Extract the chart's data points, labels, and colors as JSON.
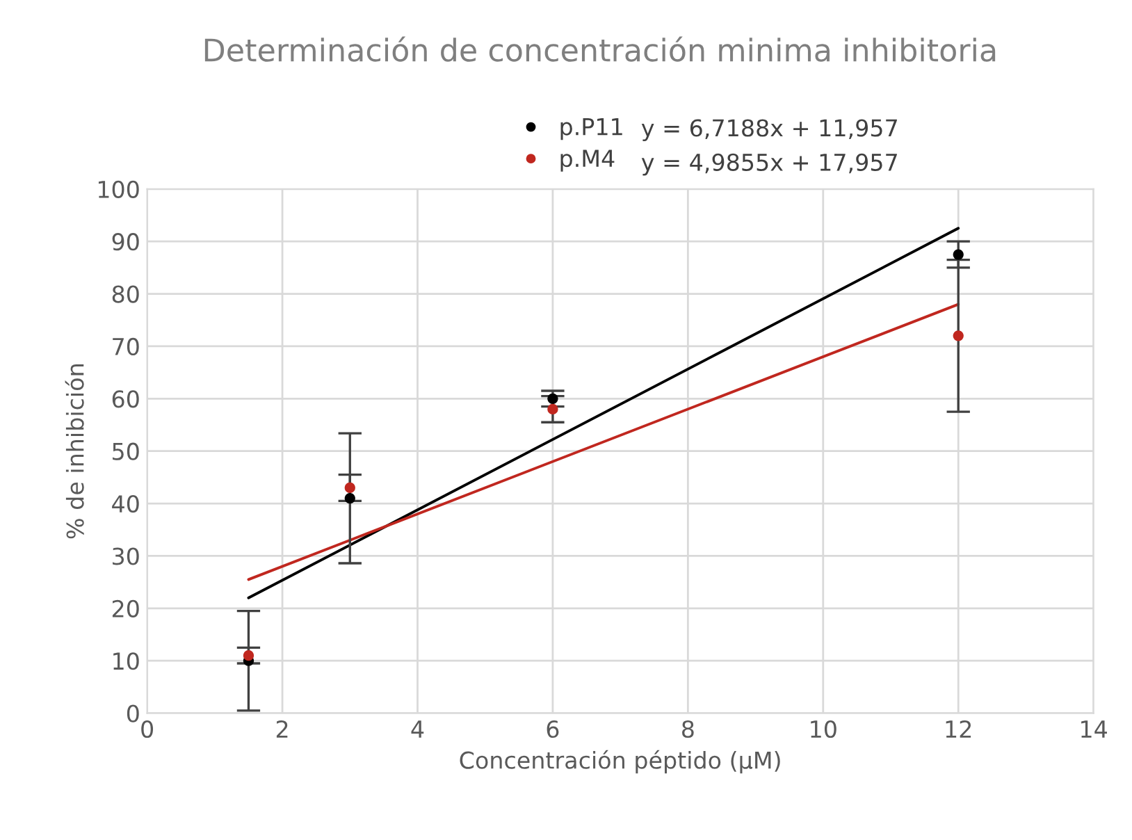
{
  "chart_data": {
    "type": "scatter",
    "title": "Determinación de concentración minima inhibitoria",
    "xlabel": "Concentración péptido (µM)",
    "ylabel": "% de inhibición",
    "xlim": [
      0,
      14
    ],
    "xticks": [
      0,
      2,
      4,
      6,
      8,
      10,
      12,
      14
    ],
    "ylim": [
      0,
      100
    ],
    "yticks": [
      0,
      10,
      20,
      30,
      40,
      50,
      60,
      70,
      80,
      90,
      100
    ],
    "grid": true,
    "legend": "top",
    "marker": "circle",
    "annotations": [
      "y = 6,7188x + 11,957",
      "y = 4,9855x + 17,957"
    ],
    "series": [
      {
        "name": "p.P11",
        "color": "#000000",
        "x": [
          1.5,
          3,
          6,
          12
        ],
        "values": [
          10,
          41,
          60,
          87.5
        ],
        "errors": [
          9.5,
          12.4,
          1.5,
          2.5
        ]
      },
      {
        "name": "p.M4",
        "color": "#c0271f",
        "x": [
          1.5,
          3,
          6,
          12
        ],
        "values": [
          11,
          43,
          58,
          72
        ],
        "errors": [
          1.5,
          2.5,
          2.5,
          14.5
        ]
      },
      {
        "type": "line",
        "marker": "none",
        "color": "#000000",
        "x": [
          1.5,
          12
        ],
        "values": [
          22,
          92.5
        ]
      },
      {
        "type": "line",
        "marker": "none",
        "color": "#c0271f",
        "x": [
          1.5,
          12
        ],
        "values": [
          25.5,
          78
        ]
      }
    ]
  }
}
